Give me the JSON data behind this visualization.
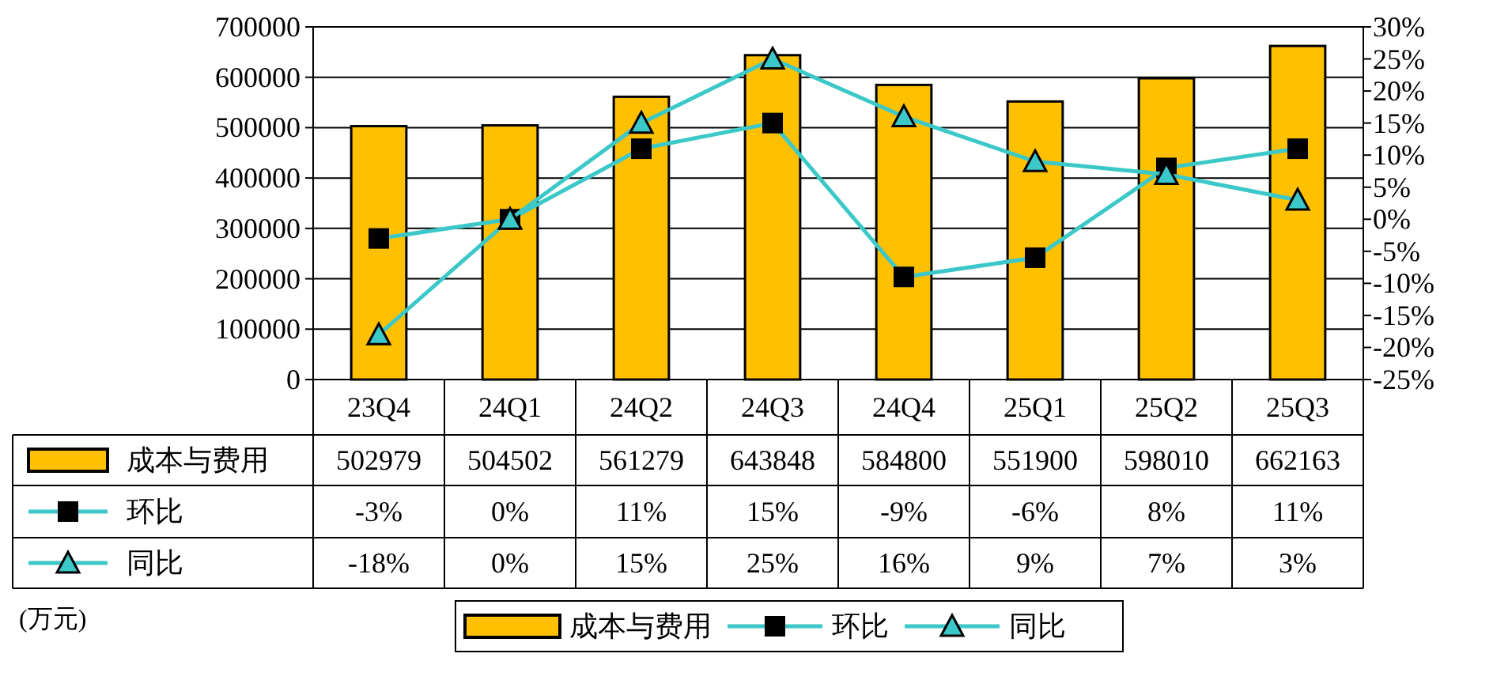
{
  "chart_data": {
    "type": "bar",
    "categories": [
      "23Q4",
      "24Q1",
      "24Q2",
      "24Q3",
      "24Q4",
      "25Q1",
      "25Q2",
      "25Q3"
    ],
    "series": [
      {
        "name": "成本与费用",
        "color": "#ffc000",
        "values": [
          502979,
          504502,
          561279,
          643848,
          584800,
          551900,
          598010,
          662163
        ],
        "value_labels": [
          "502979",
          "504502",
          "561279",
          "643848",
          "584800",
          "551900",
          "598010",
          "662163"
        ]
      },
      {
        "name": "环比",
        "type": "line",
        "axis": "y2",
        "color": "#3cc8c8",
        "marker": "square",
        "values": [
          -3,
          0,
          11,
          15,
          -9,
          -6,
          8,
          11
        ],
        "value_labels": [
          "-3%",
          "0%",
          "11%",
          "15%",
          "-9%",
          "-6%",
          "8%",
          "11%"
        ]
      },
      {
        "name": "同比",
        "type": "line",
        "axis": "y2",
        "color": "#3cc8c8",
        "marker": "triangle",
        "values": [
          -18,
          0,
          15,
          25,
          16,
          9,
          7,
          3
        ],
        "value_labels": [
          "-18%",
          "0%",
          "15%",
          "25%",
          "16%",
          "9%",
          "7%",
          "3%"
        ]
      }
    ],
    "ylim": [
      0,
      700000
    ],
    "yticks": [
      0,
      100000,
      200000,
      300000,
      400000,
      500000,
      600000,
      700000
    ],
    "y2lim": [
      -25,
      30
    ],
    "y2ticks": [
      {
        "value": -25,
        "label": "-25%"
      },
      {
        "value": -20,
        "label": "-20%"
      },
      {
        "value": -15,
        "label": "-15%"
      },
      {
        "value": -10,
        "label": "-10%"
      },
      {
        "value": -5,
        "label": "-5%"
      },
      {
        "value": 0,
        "label": "0%"
      },
      {
        "value": 5,
        "label": "5%"
      },
      {
        "value": 10,
        "label": "10%"
      },
      {
        "value": 15,
        "label": "15%"
      },
      {
        "value": 20,
        "label": "20%"
      },
      {
        "value": 25,
        "label": "25%"
      },
      {
        "value": 30,
        "label": "30%"
      }
    ],
    "grid": "y",
    "legend": "bottom",
    "line_style": "solid",
    "annotations": [
      "(万元)"
    ]
  }
}
